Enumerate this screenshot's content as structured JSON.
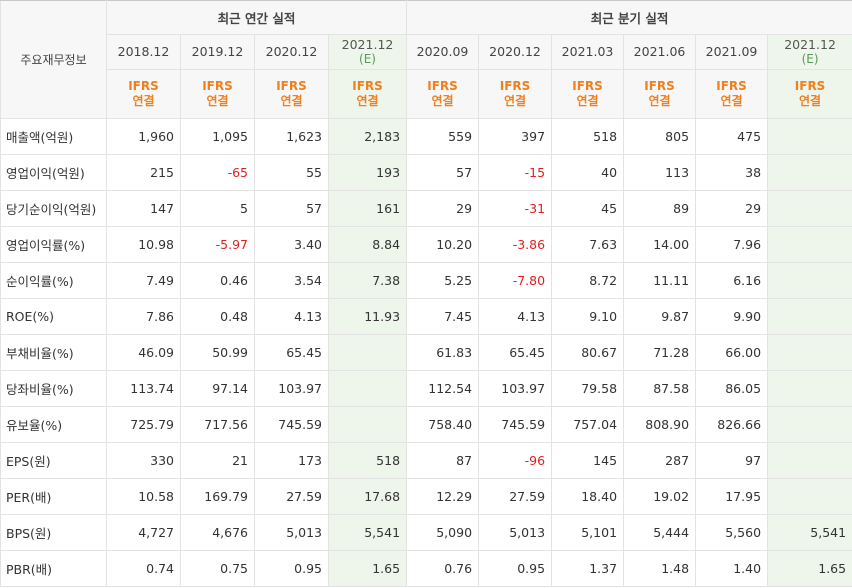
{
  "header": {
    "corner": "주요재무정보",
    "annual_group": "최근 연간 실적",
    "quarter_group": "최근 분기 실적",
    "annual_periods": [
      "2018.12",
      "2019.12",
      "2020.12",
      "2021.12"
    ],
    "quarter_periods": [
      "2020.09",
      "2020.12",
      "2021.03",
      "2021.06",
      "2021.09",
      "2021.12"
    ],
    "estimate_mark": "(E)",
    "standard_line1": "IFRS",
    "standard_line2": "연결"
  },
  "rows": [
    {
      "label": "매출액(억원)",
      "annual": [
        "1,960",
        "1,095",
        "1,623",
        "2,183"
      ],
      "quarter": [
        "559",
        "397",
        "518",
        "805",
        "475",
        ""
      ]
    },
    {
      "label": "영업이익(억원)",
      "annual": [
        "215",
        "-65",
        "55",
        "193"
      ],
      "quarter": [
        "57",
        "-15",
        "40",
        "113",
        "38",
        ""
      ]
    },
    {
      "label": "당기순이익(억원)",
      "annual": [
        "147",
        "5",
        "57",
        "161"
      ],
      "quarter": [
        "29",
        "-31",
        "45",
        "89",
        "29",
        ""
      ]
    },
    {
      "label": "영업이익률(%)",
      "annual": [
        "10.98",
        "-5.97",
        "3.40",
        "8.84"
      ],
      "quarter": [
        "10.20",
        "-3.86",
        "7.63",
        "14.00",
        "7.96",
        ""
      ]
    },
    {
      "label": "순이익률(%)",
      "annual": [
        "7.49",
        "0.46",
        "3.54",
        "7.38"
      ],
      "quarter": [
        "5.25",
        "-7.80",
        "8.72",
        "11.11",
        "6.16",
        ""
      ]
    },
    {
      "label": "ROE(%)",
      "annual": [
        "7.86",
        "0.48",
        "4.13",
        "11.93"
      ],
      "quarter": [
        "7.45",
        "4.13",
        "9.10",
        "9.87",
        "9.90",
        ""
      ]
    },
    {
      "label": "부채비율(%)",
      "annual": [
        "46.09",
        "50.99",
        "65.45",
        ""
      ],
      "quarter": [
        "61.83",
        "65.45",
        "80.67",
        "71.28",
        "66.00",
        ""
      ]
    },
    {
      "label": "당좌비율(%)",
      "annual": [
        "113.74",
        "97.14",
        "103.97",
        ""
      ],
      "quarter": [
        "112.54",
        "103.97",
        "79.58",
        "87.58",
        "86.05",
        ""
      ]
    },
    {
      "label": "유보율(%)",
      "annual": [
        "725.79",
        "717.56",
        "745.59",
        ""
      ],
      "quarter": [
        "758.40",
        "745.59",
        "757.04",
        "808.90",
        "826.66",
        ""
      ]
    },
    {
      "label": "EPS(원)",
      "annual": [
        "330",
        "21",
        "173",
        "518"
      ],
      "quarter": [
        "87",
        "-96",
        "145",
        "287",
        "97",
        ""
      ]
    },
    {
      "label": "PER(배)",
      "annual": [
        "10.58",
        "169.79",
        "27.59",
        "17.68"
      ],
      "quarter": [
        "12.29",
        "27.59",
        "18.40",
        "19.02",
        "17.95",
        ""
      ]
    },
    {
      "label": "BPS(원)",
      "annual": [
        "4,727",
        "4,676",
        "5,013",
        "5,541"
      ],
      "quarter": [
        "5,090",
        "5,013",
        "5,101",
        "5,444",
        "5,560",
        "5,541"
      ]
    },
    {
      "label": "PBR(배)",
      "annual": [
        "0.74",
        "0.75",
        "0.95",
        "1.65"
      ],
      "quarter": [
        "0.76",
        "0.95",
        "1.37",
        "1.48",
        "1.40",
        "1.65"
      ]
    }
  ]
}
